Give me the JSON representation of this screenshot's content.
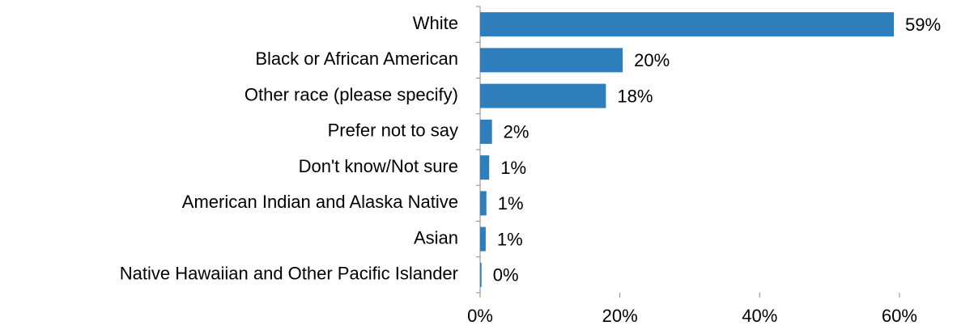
{
  "chart_data": {
    "type": "bar",
    "orientation": "horizontal",
    "categories": [
      "White",
      "Black or African American",
      "Other race (please specify)",
      "Prefer not to say",
      "Don't know/Not sure",
      "American Indian and Alaska Native",
      "Asian",
      "Native Hawaiian and Other Pacific Islander"
    ],
    "values": [
      59.2,
      20.4,
      18,
      1.7,
      1.3,
      0.9,
      0.8,
      0.2
    ],
    "value_labels": [
      "59%",
      "20%",
      "18%",
      "2%",
      "1%",
      "1%",
      "1%",
      "0%"
    ],
    "color": "#2e7ebc",
    "xlim": [
      0,
      68
    ],
    "xticks": [
      {
        "value": 0,
        "label": "0%"
      },
      {
        "value": 20,
        "label": "20%"
      },
      {
        "value": 40,
        "label": "40%"
      },
      {
        "value": 60,
        "label": "60%"
      }
    ],
    "grid": false
  }
}
